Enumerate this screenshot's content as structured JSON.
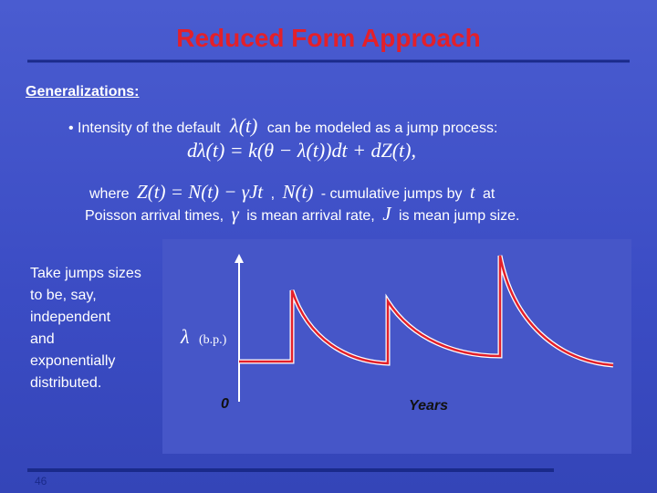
{
  "header": {
    "title": "Reduced Form Approach"
  },
  "section": {
    "heading": "Generalizations:"
  },
  "bullet": {
    "text_before": "Intensity of the default",
    "symbol": "λ(t)",
    "text_after": "can be modeled as a jump process:"
  },
  "equation": "dλ(t) = k(θ − λ(t))dt + dZ(t),",
  "where_line": {
    "lead": "where",
    "formula": "Z(t) = N(t) − γJt",
    "separator": ",",
    "symbol": "N(t)",
    "text": "- cumulative jumps by",
    "symbol_t": "t",
    "text_end": "at"
  },
  "poisson_line": {
    "text_before": "Poisson arrival times,",
    "gamma": "γ",
    "text_mid": "is mean arrival rate,",
    "j": "J",
    "text_end": "is mean jump size."
  },
  "side_note": [
    "Take jumps sizes",
    "to be, say,",
    "independent",
    "and",
    "exponentially",
    "distributed."
  ],
  "figure": {
    "y_symbol": "λ",
    "y_unit": "(b.p.)",
    "origin": "0",
    "x_label": "Years"
  },
  "footer": {
    "page_number": "46"
  }
}
